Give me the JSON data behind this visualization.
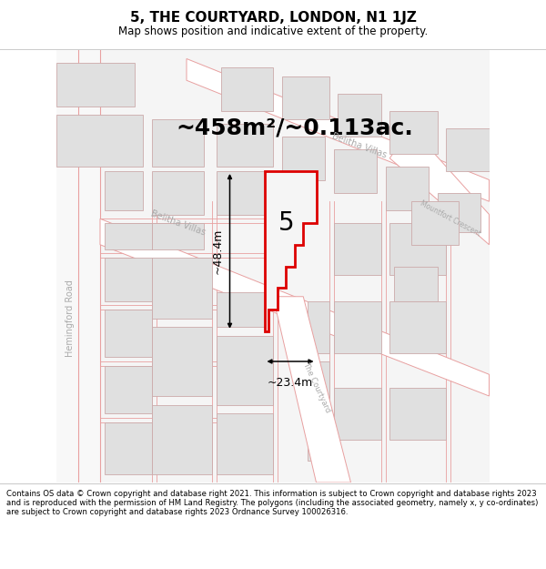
{
  "title": "5, THE COURTYARD, LONDON, N1 1JZ",
  "subtitle": "Map shows position and indicative extent of the property.",
  "area_text": "~458m²/~0.113ac.",
  "width_label": "~23.4m",
  "height_label": "~48.4m",
  "property_number": "5",
  "footer": "Contains OS data © Crown copyright and database right 2021. This information is subject to Crown copyright and database rights 2023 and is reproduced with the permission of HM Land Registry. The polygons (including the associated geometry, namely x, y co-ordinates) are subject to Crown copyright and database rights 2023 Ordnance Survey 100026316.",
  "map_bg": "#f5f5f5",
  "road_line": "#e8a0a0",
  "road_fill": "#ffffff",
  "block_fill": "#e0e0e0",
  "block_edge": "#ccaaaa",
  "prop_fill": "#f5f5f5",
  "prop_edge": "#dd0000",
  "dim_color": "#000000",
  "street_color": "#aaaaaa",
  "title_fontsize": 11,
  "subtitle_fontsize": 8.5,
  "footer_fontsize": 6.1,
  "area_fontsize": 18,
  "dim_fontsize": 9,
  "prop_label_fontsize": 20,
  "street_fontsize": 7
}
